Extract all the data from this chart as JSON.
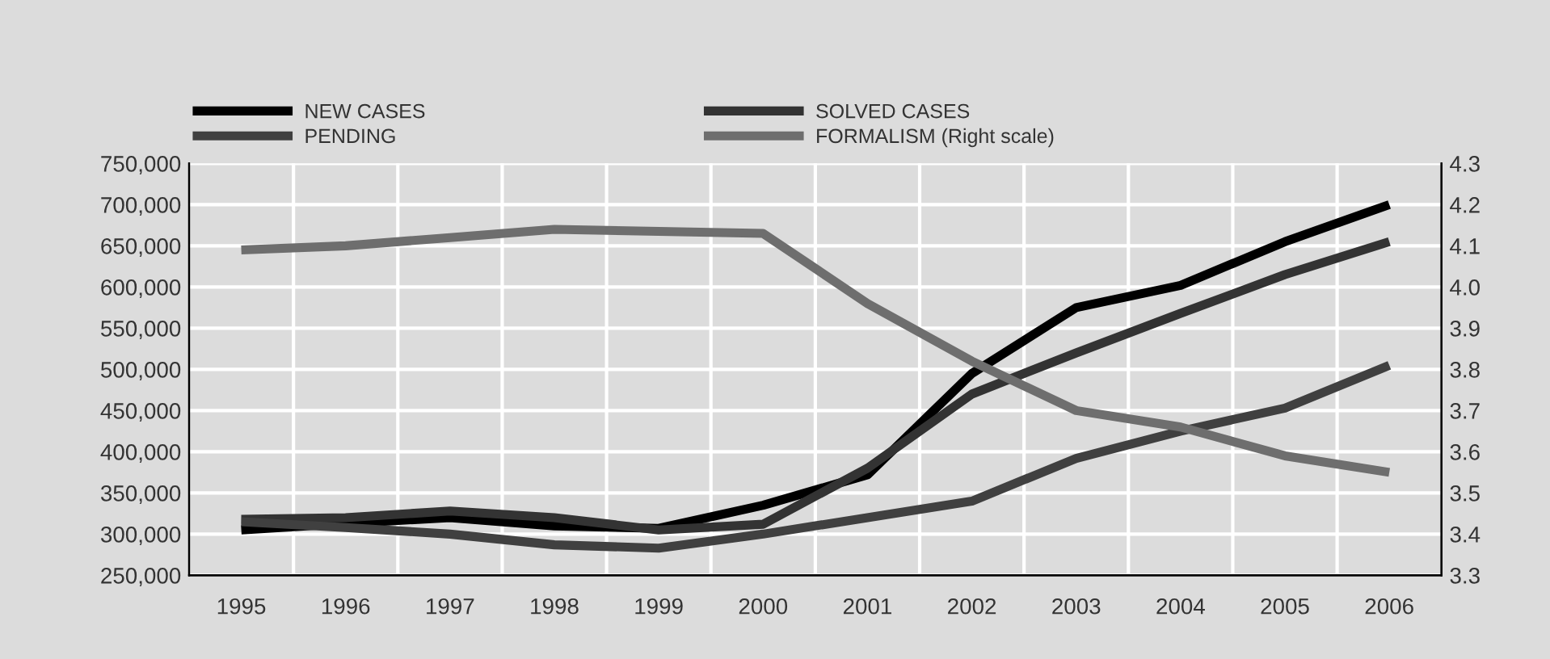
{
  "chart_data": {
    "type": "line",
    "categories": [
      "1995",
      "1996",
      "1997",
      "1998",
      "1999",
      "2000",
      "2001",
      "2002",
      "2003",
      "2004",
      "2005",
      "2006"
    ],
    "series": [
      {
        "name": "NEW CASES",
        "color": "#000000",
        "values": [
          305000,
          313000,
          320000,
          310000,
          307000,
          335000,
          372000,
          495000,
          575000,
          602000,
          655000,
          700000
        ]
      },
      {
        "name": "SOLVED CASES",
        "color": "#333333",
        "values": [
          318000,
          320000,
          328000,
          320000,
          305000,
          312000,
          380000,
          470000,
          520000,
          568000,
          615000,
          655000
        ]
      },
      {
        "name": "PENDING",
        "color": "#404040",
        "values": [
          315000,
          308000,
          300000,
          287000,
          283000,
          300000,
          320000,
          340000,
          392000,
          425000,
          453000,
          505000
        ]
      },
      {
        "name": "FORMALISM (Right scale)",
        "color": "#6e6e6e",
        "axis": "y2",
        "values": [
          4.09,
          4.1,
          4.12,
          4.14,
          4.135,
          4.13,
          3.96,
          3.82,
          3.7,
          3.66,
          3.59,
          3.55
        ]
      }
    ],
    "ylim": [
      250000,
      750000
    ],
    "yticks": [
      {
        "value": 250000,
        "label": "250,000"
      },
      {
        "value": 300000,
        "label": "300,000"
      },
      {
        "value": 350000,
        "label": "350,000"
      },
      {
        "value": 400000,
        "label": "400,000"
      },
      {
        "value": 450000,
        "label": "450,000"
      },
      {
        "value": 500000,
        "label": "500,000"
      },
      {
        "value": 550000,
        "label": "550,000"
      },
      {
        "value": 600000,
        "label": "600,000"
      },
      {
        "value": 650000,
        "label": "650,000"
      },
      {
        "value": 700000,
        "label": "700,000"
      },
      {
        "value": 750000,
        "label": "750,000"
      }
    ],
    "y2lim": [
      3.3,
      4.3
    ],
    "y2ticks": [
      {
        "value": 3.3,
        "label": "3.3"
      },
      {
        "value": 3.4,
        "label": "3.4"
      },
      {
        "value": 3.5,
        "label": "3.5"
      },
      {
        "value": 3.6,
        "label": "3.6"
      },
      {
        "value": 3.7,
        "label": "3.7"
      },
      {
        "value": 3.8,
        "label": "3.8"
      },
      {
        "value": 3.9,
        "label": "3.9"
      },
      {
        "value": 4.0,
        "label": "4.0"
      },
      {
        "value": 4.1,
        "label": "4.1"
      },
      {
        "value": 4.2,
        "label": "4.2"
      },
      {
        "value": 4.3,
        "label": "4.3"
      }
    ],
    "grid": true,
    "legend": "top",
    "marker": "none",
    "line_style": "solid"
  }
}
